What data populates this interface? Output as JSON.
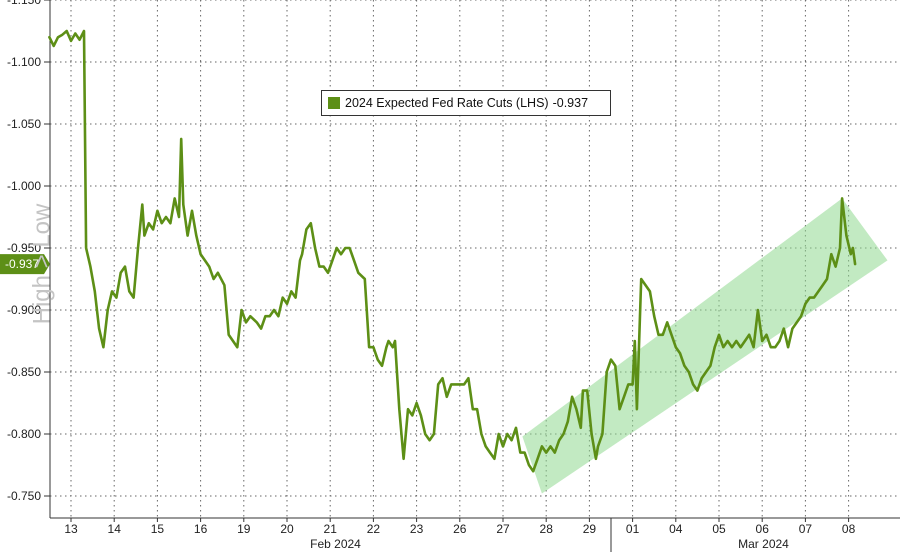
{
  "chart_data": {
    "type": "line",
    "title": "",
    "xlabel": "",
    "ylabel": "",
    "y_axis_inverted": true,
    "ylim": [
      -1.15,
      -0.74
    ],
    "yticks": [
      -1.15,
      -1.1,
      -1.05,
      -1.0,
      -0.95,
      -0.9,
      -0.85,
      -0.8,
      -0.75
    ],
    "ytick_labels": [
      "-1.150",
      "-1.100",
      "-1.050",
      "-1.000",
      "-0.950",
      "-0.900",
      "-0.850",
      "-0.800",
      "-0.750"
    ],
    "x_days": [
      "13",
      "14",
      "15",
      "16",
      "19",
      "20",
      "21",
      "22",
      "23",
      "26",
      "27",
      "28",
      "29",
      "01",
      "04",
      "05",
      "06",
      "07",
      "08"
    ],
    "month_labels": [
      {
        "label": "Feb 2024",
        "start_day": 0,
        "end_day": 12
      },
      {
        "label": "Mar 2024",
        "start_day": 13,
        "end_day": 18
      }
    ],
    "last_value_label": "-0.937",
    "watermark": "High > Low",
    "grid": true,
    "legend": {
      "position": "top-center",
      "label": "2024 Expected Fed Rate Cuts (LHS)",
      "value": "-0.937"
    },
    "series": [
      {
        "name": "2024 Expected Fed Rate Cuts (LHS)",
        "color": "#5d8f16",
        "points": [
          [
            -0.5,
            -1.12
          ],
          [
            -0.4,
            -1.113
          ],
          [
            -0.3,
            -1.12
          ],
          [
            -0.2,
            -1.122
          ],
          [
            -0.1,
            -1.125
          ],
          [
            0.0,
            -1.117
          ],
          [
            0.1,
            -1.123
          ],
          [
            0.2,
            -1.118
          ],
          [
            0.3,
            -1.125
          ],
          [
            0.35,
            -0.95
          ],
          [
            0.45,
            -0.935
          ],
          [
            0.55,
            -0.915
          ],
          [
            0.65,
            -0.885
          ],
          [
            0.75,
            -0.87
          ],
          [
            0.85,
            -0.9
          ],
          [
            0.95,
            -0.915
          ],
          [
            1.05,
            -0.91
          ],
          [
            1.15,
            -0.93
          ],
          [
            1.25,
            -0.935
          ],
          [
            1.35,
            -0.915
          ],
          [
            1.45,
            -0.91
          ],
          [
            1.55,
            -0.95
          ],
          [
            1.65,
            -0.985
          ],
          [
            1.7,
            -0.96
          ],
          [
            1.8,
            -0.97
          ],
          [
            1.9,
            -0.965
          ],
          [
            2.0,
            -0.98
          ],
          [
            2.1,
            -0.97
          ],
          [
            2.2,
            -0.975
          ],
          [
            2.3,
            -0.97
          ],
          [
            2.4,
            -0.99
          ],
          [
            2.5,
            -0.975
          ],
          [
            2.55,
            -1.038
          ],
          [
            2.6,
            -0.985
          ],
          [
            2.7,
            -0.96
          ],
          [
            2.8,
            -0.98
          ],
          [
            2.9,
            -0.96
          ],
          [
            3.0,
            -0.945
          ],
          [
            3.1,
            -0.94
          ],
          [
            3.2,
            -0.935
          ],
          [
            3.3,
            -0.925
          ],
          [
            3.4,
            -0.93
          ],
          [
            3.55,
            -0.92
          ],
          [
            3.65,
            -0.88
          ],
          [
            3.75,
            -0.875
          ],
          [
            3.85,
            -0.87
          ],
          [
            3.95,
            -0.9
          ],
          [
            4.05,
            -0.89
          ],
          [
            4.15,
            -0.895
          ],
          [
            4.3,
            -0.89
          ],
          [
            4.4,
            -0.885
          ],
          [
            4.5,
            -0.895
          ],
          [
            4.6,
            -0.895
          ],
          [
            4.7,
            -0.9
          ],
          [
            4.8,
            -0.895
          ],
          [
            4.9,
            -0.91
          ],
          [
            5.0,
            -0.905
          ],
          [
            5.1,
            -0.915
          ],
          [
            5.2,
            -0.91
          ],
          [
            5.3,
            -0.94
          ],
          [
            5.35,
            -0.945
          ],
          [
            5.45,
            -0.965
          ],
          [
            5.55,
            -0.97
          ],
          [
            5.65,
            -0.95
          ],
          [
            5.75,
            -0.935
          ],
          [
            5.85,
            -0.935
          ],
          [
            5.95,
            -0.93
          ],
          [
            6.05,
            -0.94
          ],
          [
            6.15,
            -0.95
          ],
          [
            6.25,
            -0.945
          ],
          [
            6.35,
            -0.95
          ],
          [
            6.45,
            -0.95
          ],
          [
            6.55,
            -0.94
          ],
          [
            6.65,
            -0.93
          ],
          [
            6.8,
            -0.925
          ],
          [
            6.9,
            -0.87
          ],
          [
            7.0,
            -0.87
          ],
          [
            7.1,
            -0.86
          ],
          [
            7.2,
            -0.855
          ],
          [
            7.3,
            -0.87
          ],
          [
            7.35,
            -0.875
          ],
          [
            7.45,
            -0.87
          ],
          [
            7.5,
            -0.875
          ],
          [
            7.6,
            -0.82
          ],
          [
            7.7,
            -0.78
          ],
          [
            7.8,
            -0.82
          ],
          [
            7.9,
            -0.815
          ],
          [
            8.0,
            -0.825
          ],
          [
            8.1,
            -0.815
          ],
          [
            8.2,
            -0.8
          ],
          [
            8.3,
            -0.795
          ],
          [
            8.4,
            -0.8
          ],
          [
            8.5,
            -0.84
          ],
          [
            8.6,
            -0.845
          ],
          [
            8.7,
            -0.83
          ],
          [
            8.8,
            -0.84
          ],
          [
            8.9,
            -0.84
          ],
          [
            9.0,
            -0.84
          ],
          [
            9.1,
            -0.84
          ],
          [
            9.2,
            -0.845
          ],
          [
            9.3,
            -0.82
          ],
          [
            9.4,
            -0.82
          ],
          [
            9.5,
            -0.8
          ],
          [
            9.6,
            -0.79
          ],
          [
            9.7,
            -0.785
          ],
          [
            9.8,
            -0.78
          ],
          [
            9.9,
            -0.8
          ],
          [
            10.0,
            -0.79
          ],
          [
            10.1,
            -0.8
          ],
          [
            10.2,
            -0.795
          ],
          [
            10.3,
            -0.805
          ],
          [
            10.4,
            -0.785
          ],
          [
            10.5,
            -0.785
          ],
          [
            10.6,
            -0.775
          ],
          [
            10.7,
            -0.77
          ],
          [
            10.8,
            -0.78
          ],
          [
            10.9,
            -0.79
          ],
          [
            11.0,
            -0.785
          ],
          [
            11.1,
            -0.79
          ],
          [
            11.2,
            -0.785
          ],
          [
            11.3,
            -0.795
          ],
          [
            11.4,
            -0.8
          ],
          [
            11.5,
            -0.81
          ],
          [
            11.6,
            -0.83
          ],
          [
            11.7,
            -0.82
          ],
          [
            11.8,
            -0.805
          ],
          [
            11.85,
            -0.835
          ],
          [
            11.95,
            -0.835
          ],
          [
            12.05,
            -0.8
          ],
          [
            12.15,
            -0.78
          ],
          [
            12.2,
            -0.79
          ],
          [
            12.3,
            -0.8
          ],
          [
            12.4,
            -0.85
          ],
          [
            12.5,
            -0.86
          ],
          [
            12.6,
            -0.855
          ],
          [
            12.7,
            -0.82
          ],
          [
            12.8,
            -0.83
          ],
          [
            12.9,
            -0.84
          ],
          [
            13.0,
            -0.84
          ],
          [
            13.05,
            -0.875
          ],
          [
            13.1,
            -0.82
          ],
          [
            13.2,
            -0.925
          ],
          [
            13.3,
            -0.92
          ],
          [
            13.4,
            -0.915
          ],
          [
            13.5,
            -0.895
          ],
          [
            13.6,
            -0.88
          ],
          [
            13.7,
            -0.88
          ],
          [
            13.8,
            -0.89
          ],
          [
            13.9,
            -0.88
          ],
          [
            14.0,
            -0.87
          ],
          [
            14.1,
            -0.865
          ],
          [
            14.2,
            -0.855
          ],
          [
            14.3,
            -0.85
          ],
          [
            14.4,
            -0.84
          ],
          [
            14.5,
            -0.835
          ],
          [
            14.6,
            -0.845
          ],
          [
            14.7,
            -0.85
          ],
          [
            14.8,
            -0.855
          ],
          [
            14.9,
            -0.87
          ],
          [
            15.0,
            -0.88
          ],
          [
            15.1,
            -0.87
          ],
          [
            15.2,
            -0.875
          ],
          [
            15.3,
            -0.87
          ],
          [
            15.4,
            -0.875
          ],
          [
            15.5,
            -0.87
          ],
          [
            15.6,
            -0.875
          ],
          [
            15.7,
            -0.88
          ],
          [
            15.8,
            -0.87
          ],
          [
            15.9,
            -0.9
          ],
          [
            16.0,
            -0.875
          ],
          [
            16.1,
            -0.88
          ],
          [
            16.2,
            -0.87
          ],
          [
            16.3,
            -0.87
          ],
          [
            16.4,
            -0.875
          ],
          [
            16.5,
            -0.885
          ],
          [
            16.6,
            -0.87
          ],
          [
            16.7,
            -0.885
          ],
          [
            16.8,
            -0.89
          ],
          [
            16.9,
            -0.895
          ],
          [
            17.0,
            -0.905
          ],
          [
            17.1,
            -0.91
          ],
          [
            17.2,
            -0.91
          ],
          [
            17.3,
            -0.915
          ],
          [
            17.4,
            -0.92
          ],
          [
            17.5,
            -0.925
          ],
          [
            17.6,
            -0.945
          ],
          [
            17.7,
            -0.935
          ],
          [
            17.8,
            -0.95
          ],
          [
            17.85,
            -0.99
          ],
          [
            17.95,
            -0.96
          ],
          [
            18.05,
            -0.945
          ],
          [
            18.1,
            -0.95
          ],
          [
            18.15,
            -0.937
          ]
        ]
      }
    ],
    "channel": {
      "label": "uptrend channel",
      "color": "#90d890",
      "corners": [
        [
          10.45,
          -0.798
        ],
        [
          17.85,
          -0.99
        ],
        [
          18.9,
          -0.94
        ],
        [
          10.9,
          -0.752
        ]
      ]
    }
  }
}
